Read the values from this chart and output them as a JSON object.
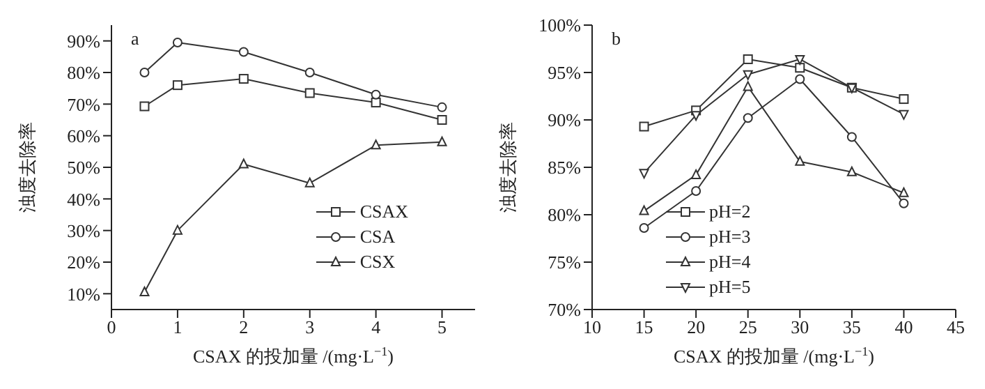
{
  "chart_data": [
    {
      "type": "line",
      "xlabel": "CSAX 的投加量 /(mg·L$^{−1}$)",
      "ylabel": "浊度去除率",
      "annotations": [
        "a"
      ],
      "x": [
        0.5,
        1,
        2,
        3,
        4,
        5
      ],
      "xlim": [
        0,
        5.5
      ],
      "xticks": [
        0,
        1,
        2,
        3,
        4,
        5
      ],
      "ylim": [
        5,
        95
      ],
      "yticks": [
        {
          "value": 10,
          "label": "10%"
        },
        {
          "value": 20,
          "label": "20%"
        },
        {
          "value": 30,
          "label": "30%"
        },
        {
          "value": 40,
          "label": "40%"
        },
        {
          "value": 50,
          "label": "50%"
        },
        {
          "value": 60,
          "label": "60%"
        },
        {
          "value": 70,
          "label": "70%"
        },
        {
          "value": 80,
          "label": "80%"
        },
        {
          "value": 90,
          "label": "90%"
        }
      ],
      "grid": false,
      "legend": "bottom right",
      "series": [
        {
          "name": "CSAX",
          "color": "#333333",
          "marker": "square",
          "values": [
            69.3,
            76,
            78,
            73.5,
            70.5,
            65
          ]
        },
        {
          "name": "CSA",
          "color": "#333333",
          "marker": "circle",
          "values": [
            80,
            89.5,
            86.5,
            80,
            73,
            69
          ]
        },
        {
          "name": "CSX",
          "color": "#333333",
          "marker": "triangle",
          "values": [
            10.5,
            30,
            51,
            45,
            57,
            58
          ]
        }
      ]
    },
    {
      "type": "line",
      "xlabel": "CSAX 的投加量 /(mg·L$^{−1}$)",
      "ylabel": "浊度去除率",
      "annotations": [
        "b"
      ],
      "x": [
        15,
        20,
        25,
        30,
        35,
        40
      ],
      "xlim": [
        10,
        45
      ],
      "xticks": [
        10,
        15,
        20,
        25,
        30,
        35,
        40,
        45
      ],
      "ylim": [
        70,
        100
      ],
      "yticks": [
        {
          "value": 70,
          "label": "70%"
        },
        {
          "value": 75,
          "label": "75%"
        },
        {
          "value": 80,
          "label": "80%"
        },
        {
          "value": 85,
          "label": "85%"
        },
        {
          "value": 90,
          "label": "90%"
        },
        {
          "value": 95,
          "label": "95%"
        },
        {
          "value": 100,
          "label": "100%"
        }
      ],
      "grid": false,
      "legend": "bottom",
      "series": [
        {
          "name": "pH=2",
          "color": "#333333",
          "marker": "square",
          "values": [
            89.3,
            91,
            96.4,
            95.5,
            93.4,
            92.2
          ]
        },
        {
          "name": "pH=3",
          "color": "#333333",
          "marker": "circle",
          "values": [
            78.6,
            82.5,
            90.2,
            94.3,
            88.2,
            81.2
          ]
        },
        {
          "name": "pH=4",
          "color": "#333333",
          "marker": "triangle",
          "values": [
            80.4,
            84.2,
            93.5,
            85.6,
            84.5,
            82.3
          ]
        },
        {
          "name": "pH=5",
          "color": "#333333",
          "marker": "triangle-down",
          "values": [
            84.4,
            90.5,
            94.8,
            96.4,
            93.4,
            90.6
          ]
        }
      ]
    }
  ]
}
